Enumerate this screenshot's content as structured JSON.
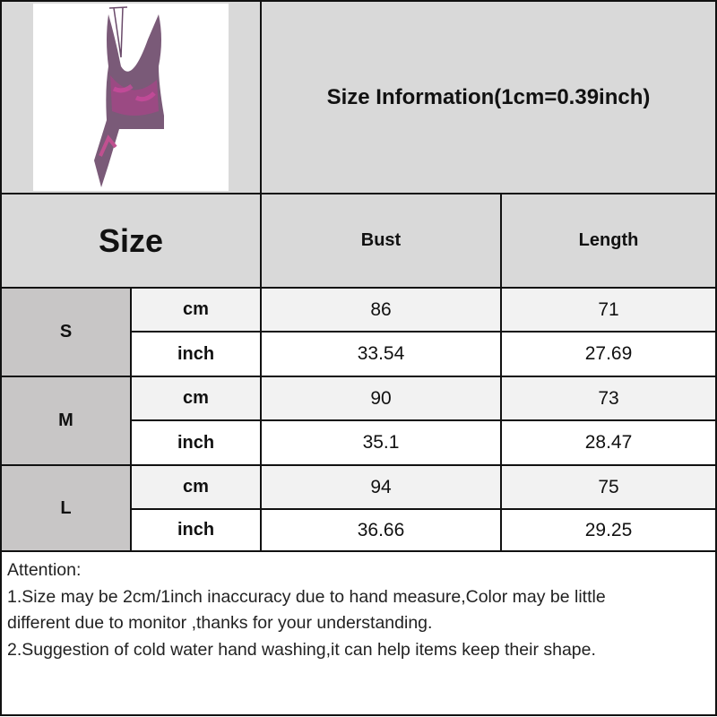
{
  "title": "Size Information(1cm=0.39inch)",
  "header": {
    "size": "Size",
    "bust": "Bust",
    "length": "Length"
  },
  "rows": [
    {
      "size": "S",
      "cm": {
        "unit": "cm",
        "bust": "86",
        "length": "71"
      },
      "inch": {
        "unit": "inch",
        "bust": "33.54",
        "length": "27.69"
      }
    },
    {
      "size": "M",
      "cm": {
        "unit": "cm",
        "bust": "90",
        "length": "73"
      },
      "inch": {
        "unit": "inch",
        "bust": "35.1",
        "length": "28.47"
      }
    },
    {
      "size": "L",
      "cm": {
        "unit": "cm",
        "bust": "94",
        "length": "75"
      },
      "inch": {
        "unit": "inch",
        "bust": "36.66",
        "length": "29.25"
      }
    }
  ],
  "attention": {
    "heading": "Attention:",
    "line1": "1.Size may be 2cm/1inch inaccuracy due to hand measure,Color may be little",
    "line2": "different due to monitor ,thanks for your understanding.",
    "line3": "2.Suggestion of cold water hand washing,it can help items keep their shape."
  },
  "colors": {
    "header_bg": "#d9d9d9",
    "size_bg": "#c8c6c6",
    "cm_row_bg": "#f2f2f2",
    "dress_accent": "#b0408a"
  }
}
